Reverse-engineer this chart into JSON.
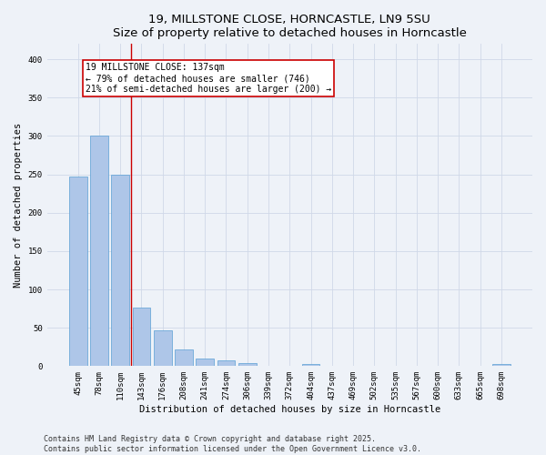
{
  "title1": "19, MILLSTONE CLOSE, HORNCASTLE, LN9 5SU",
  "title2": "Size of property relative to detached houses in Horncastle",
  "xlabel": "Distribution of detached houses by size in Horncastle",
  "ylabel": "Number of detached properties",
  "categories": [
    "45sqm",
    "78sqm",
    "110sqm",
    "143sqm",
    "176sqm",
    "208sqm",
    "241sqm",
    "274sqm",
    "306sqm",
    "339sqm",
    "372sqm",
    "404sqm",
    "437sqm",
    "469sqm",
    "502sqm",
    "535sqm",
    "567sqm",
    "600sqm",
    "633sqm",
    "665sqm",
    "698sqm"
  ],
  "values": [
    247,
    300,
    250,
    76,
    47,
    22,
    10,
    7,
    4,
    0,
    0,
    3,
    0,
    0,
    0,
    0,
    0,
    0,
    0,
    0,
    3
  ],
  "bar_color": "#aec6e8",
  "bar_edgecolor": "#5a9fd4",
  "vline_x": 2.5,
  "vline_color": "#cc0000",
  "annotation_text": "19 MILLSTONE CLOSE: 137sqm\n← 79% of detached houses are smaller (746)\n21% of semi-detached houses are larger (200) →",
  "annotation_box_edgecolor": "#cc0000",
  "annotation_box_facecolor": "white",
  "ylim": [
    0,
    420
  ],
  "yticks": [
    0,
    50,
    100,
    150,
    200,
    250,
    300,
    350,
    400
  ],
  "grid_color": "#d0d8e8",
  "background_color": "#eef2f8",
  "footer": "Contains HM Land Registry data © Crown copyright and database right 2025.\nContains public sector information licensed under the Open Government Licence v3.0.",
  "title1_fontsize": 9.5,
  "title2_fontsize": 8.5,
  "xlabel_fontsize": 7.5,
  "ylabel_fontsize": 7.5,
  "tick_fontsize": 6.5,
  "annotation_fontsize": 7,
  "footer_fontsize": 6
}
